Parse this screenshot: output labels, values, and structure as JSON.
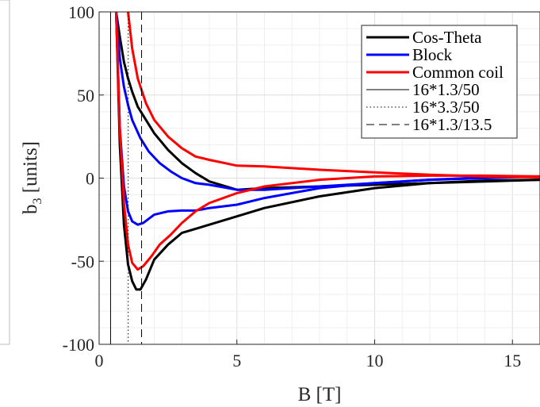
{
  "chart_data": {
    "type": "line",
    "title": "",
    "xlabel": "B [T]",
    "ylabel": {
      "main": "b",
      "sub": "3",
      "unit": " [units]"
    },
    "xlim": [
      0,
      16
    ],
    "ylim": [
      -100,
      100
    ],
    "xticks": [
      0,
      5,
      10,
      15
    ],
    "yticks": [
      -100,
      -50,
      0,
      50,
      100
    ],
    "xtick_labels": [
      "0",
      "5",
      "10",
      "15"
    ],
    "ytick_labels": [
      "-100",
      "-50",
      "0",
      "50",
      "100"
    ],
    "grid": true,
    "legend_position": "top-right",
    "series": [
      {
        "name": "Cos-Theta",
        "color": "#000000",
        "style": "solid",
        "branches": [
          {
            "x": [
              0.62,
              0.75,
              0.9,
              1.05,
              1.2,
              1.4,
              1.7,
              2.0,
              2.5,
              3.0,
              3.5,
              4.0,
              5.0,
              6.0,
              8.0,
              10.0,
              12.0,
              14.0,
              16.0
            ],
            "y": [
              100,
              85,
              70,
              60,
              52,
              43,
              35,
              27,
              17,
              9,
              3,
              -2,
              -7,
              -6,
              -5,
              -4,
              -3,
              -2,
              -1
            ]
          },
          {
            "x": [
              0.62,
              0.75,
              0.9,
              1.05,
              1.2,
              1.35,
              1.5,
              1.7,
              2.0,
              2.5,
              3.0,
              4.0,
              5.0,
              6.0,
              8.0,
              10.0,
              12.0,
              14.0,
              16.0
            ],
            "y": [
              100,
              20,
              -28,
              -52,
              -62,
              -67,
              -67,
              -61,
              -49,
              -40,
              -33,
              -28,
              -23,
              -18,
              -11,
              -6,
              -3,
              -1.5,
              -1
            ]
          }
        ]
      },
      {
        "name": "Block",
        "color": "#0000ff",
        "style": "solid",
        "branches": [
          {
            "x": [
              0.62,
              0.75,
              0.9,
              1.05,
              1.2,
              1.5,
              1.8,
              2.2,
              2.6,
              3.0,
              3.5,
              4.0,
              5.0,
              6.0,
              8.0,
              10.0,
              12.0,
              14.0,
              16.0
            ],
            "y": [
              100,
              72,
              55,
              44,
              35,
              24,
              16,
              9,
              4,
              0,
              -3,
              -4,
              -7,
              -7,
              -5,
              -3,
              -1,
              0.5,
              1
            ]
          },
          {
            "x": [
              0.62,
              0.75,
              0.9,
              1.05,
              1.2,
              1.4,
              1.6,
              2.0,
              2.5,
              3.0,
              3.5,
              4.0,
              5.0,
              6.0,
              8.0,
              10.0,
              12.0,
              14.0,
              16.0
            ],
            "y": [
              100,
              30,
              -5,
              -20,
              -26,
              -28,
              -27,
              -22,
              -20,
              -19.5,
              -19.5,
              -18,
              -16,
              -12,
              -6,
              -3,
              -1,
              0,
              1
            ]
          }
        ]
      },
      {
        "name": "Common coil",
        "color": "#ff0000",
        "style": "solid",
        "branches": [
          {
            "x": [
              1.05,
              1.2,
              1.4,
              1.7,
              2.0,
              2.5,
              3.0,
              3.5,
              4.0,
              5.0,
              6.0,
              8.0,
              10.0,
              12.0,
              14.0,
              16.0
            ],
            "y": [
              100,
              78,
              60,
              45,
              35,
              25,
              18,
              13,
              11,
              7.5,
              7,
              5,
              3.5,
              2,
              1,
              0.5
            ]
          },
          {
            "x": [
              0.62,
              0.75,
              0.9,
              1.05,
              1.2,
              1.4,
              1.6,
              1.9,
              2.2,
              2.6,
              3.0,
              3.5,
              4.0,
              5.0,
              6.0,
              8.0,
              10.0,
              12.0,
              14.0,
              16.0
            ],
            "y": [
              100,
              30,
              -15,
              -40,
              -51,
              -55,
              -53,
              -47,
              -40,
              -34,
              -27,
              -20,
              -15,
              -9,
              -5,
              -1,
              1,
              1.5,
              1.5,
              1
            ]
          }
        ]
      },
      {
        "name": "16*1.3/50",
        "color": "#000000",
        "style": "solid-thin",
        "vline_x": 0.416
      },
      {
        "name": "16*3.3/50",
        "color": "#000000",
        "style": "dotted",
        "vline_x": 1.056
      },
      {
        "name": "16*1.3/13.5",
        "color": "#000000",
        "style": "dashed",
        "vline_x": 1.541
      }
    ]
  }
}
